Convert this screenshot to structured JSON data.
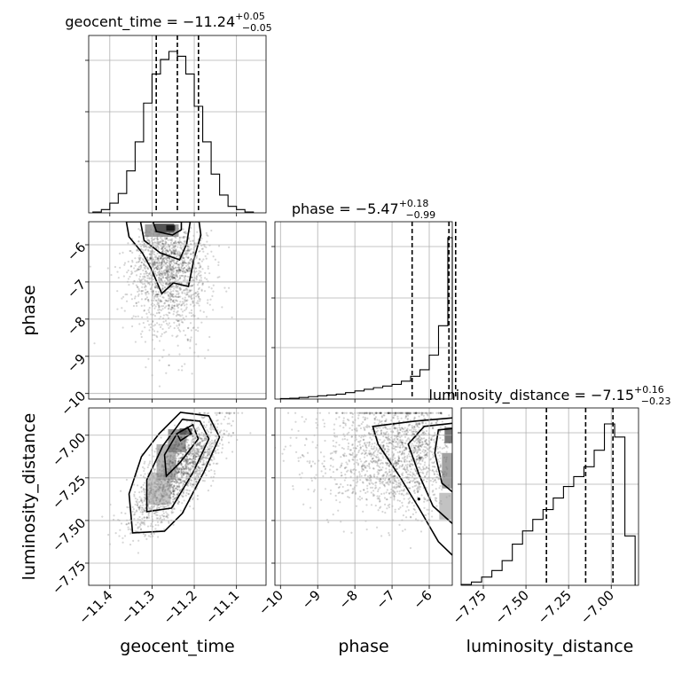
{
  "chart_data": {
    "type": "corner",
    "parameters": [
      "geocent_time",
      "phase",
      "luminosity_distance"
    ],
    "titles": {
      "geocent_time": {
        "label": "geocent_time",
        "median": "−11.24",
        "plus": "+0.05",
        "minus": "−0.05"
      },
      "phase": {
        "label": "phase",
        "median": "−5.47",
        "plus": "+0.18",
        "minus": "−0.99"
      },
      "luminosity_distance": {
        "label": "luminosity_distance",
        "median": "−7.15",
        "plus": "+0.16",
        "minus": "−0.23"
      }
    },
    "axes": {
      "geocent_time": {
        "range": [
          -11.45,
          -11.03
        ],
        "ticks": [
          -11.4,
          -11.3,
          -11.2,
          -11.1
        ],
        "tick_labels": [
          "−11.4",
          "−11.3",
          "−11.2",
          "−11.1"
        ]
      },
      "phase": {
        "range": [
          -10.15,
          -5.38
        ],
        "ticks": [
          -10,
          -9,
          -8,
          -7,
          -6
        ],
        "tick_labels": [
          "−10",
          "−9",
          "−8",
          "−7",
          "−6"
        ]
      },
      "luminosity_distance": {
        "range": [
          -7.88,
          -6.84
        ],
        "ticks": [
          -7.75,
          -7.5,
          -7.25,
          -7.0
        ],
        "tick_labels": [
          "−7.75",
          "−7.50",
          "−7.25",
          "−7.00"
        ]
      }
    },
    "histograms": {
      "geocent_time": {
        "bin_edges": [
          -11.44,
          -11.42,
          -11.4,
          -11.38,
          -11.36,
          -11.34,
          -11.32,
          -11.3,
          -11.28,
          -11.26,
          -11.24,
          -11.22,
          -11.2,
          -11.18,
          -11.16,
          -11.14,
          -11.12,
          -11.1,
          -11.08,
          -11.06
        ],
        "counts": [
          0.005,
          0.02,
          0.06,
          0.12,
          0.26,
          0.44,
          0.68,
          0.86,
          0.95,
          1.0,
          0.97,
          0.86,
          0.66,
          0.44,
          0.24,
          0.11,
          0.04,
          0.02,
          0.005
        ],
        "quantiles": [
          -11.29,
          -11.24,
          -11.19
        ]
      },
      "phase": {
        "bin_edges": [
          -10.0,
          -9.75,
          -9.5,
          -9.25,
          -9.0,
          -8.75,
          -8.5,
          -8.25,
          -8.0,
          -7.75,
          -7.5,
          -7.25,
          -7.0,
          -6.75,
          -6.5,
          -6.25,
          -6.0,
          -5.75,
          -5.5,
          -5.38
        ],
        "counts": [
          0.003,
          0.005,
          0.01,
          0.015,
          0.02,
          0.025,
          0.03,
          0.04,
          0.05,
          0.06,
          0.07,
          0.08,
          0.09,
          0.11,
          0.14,
          0.18,
          0.27,
          0.45,
          0.99
        ],
        "quantiles": [
          -6.46,
          -5.47,
          -5.29
        ]
      },
      "luminosity_distance": {
        "bin_edges": [
          -7.88,
          -7.82,
          -7.76,
          -7.7,
          -7.64,
          -7.58,
          -7.52,
          -7.46,
          -7.4,
          -7.34,
          -7.28,
          -7.22,
          -7.16,
          -7.1,
          -7.04,
          -6.98,
          -6.92,
          -6.86
        ],
        "counts": [
          0.005,
          0.02,
          0.05,
          0.09,
          0.15,
          0.25,
          0.33,
          0.4,
          0.46,
          0.53,
          0.6,
          0.66,
          0.72,
          0.82,
          0.98,
          0.9,
          0.3
        ],
        "quantiles": [
          -7.38,
          -7.15,
          -6.99
        ]
      }
    },
    "joint": [
      {
        "x": "geocent_time",
        "y": "phase",
        "mode": [
          -11.26,
          -5.5
        ]
      },
      {
        "x": "geocent_time",
        "y": "luminosity_distance",
        "mode": [
          -11.22,
          -6.98
        ]
      },
      {
        "x": "phase",
        "y": "luminosity_distance",
        "mode": [
          -5.42,
          -7.0
        ]
      }
    ],
    "grid": true
  }
}
